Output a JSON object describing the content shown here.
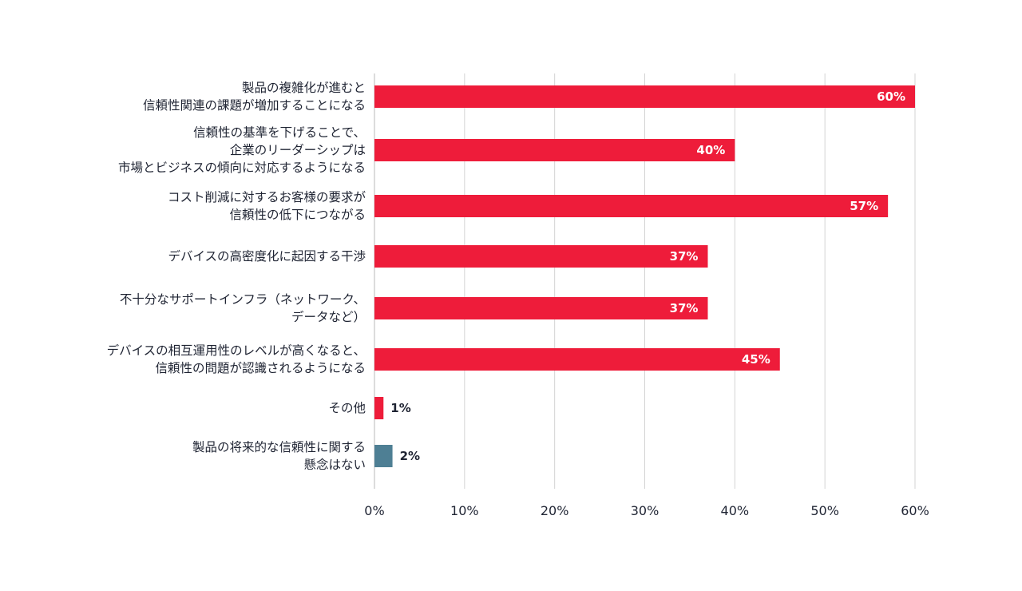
{
  "chart_data": {
    "type": "bar",
    "orientation": "horizontal",
    "categories": [
      [
        "製品の複雑化が進むと",
        "信頼性関連の課題が増加することになる"
      ],
      [
        "信頼性の基準を下げることで、",
        "企業のリーダーシップは",
        "市場とビジネスの傾向に対応するようになる"
      ],
      [
        "コスト削減に対するお客様の要求が",
        "信頼性の低下につながる"
      ],
      [
        "デバイスの高密度化に起因する干渉"
      ],
      [
        "不十分なサポートインフラ（ネットワーク、",
        "データなど）"
      ],
      [
        "デバイスの相互運用性のレベルが高くなると、",
        "信頼性の問題が認識されるようになる"
      ],
      [
        "その他"
      ],
      [
        "製品の将来的な信頼性に関する",
        "懸念はない"
      ]
    ],
    "values": [
      60,
      40,
      57,
      37,
      37,
      45,
      1,
      2
    ],
    "value_labels": [
      "60%",
      "40%",
      "57%",
      "37%",
      "37%",
      "45%",
      "1%",
      "2%"
    ],
    "bar_colors": [
      "#ee1c3a",
      "#ee1c3a",
      "#ee1c3a",
      "#ee1c3a",
      "#ee1c3a",
      "#ee1c3a",
      "#ee1c3a",
      "#4e7f94"
    ],
    "xlim": [
      0,
      60
    ],
    "x_ticks": [
      0,
      10,
      20,
      30,
      40,
      50,
      60
    ],
    "x_tick_labels": [
      "0%",
      "10%",
      "20%",
      "30%",
      "40%",
      "50%",
      "60%"
    ],
    "grid": "vertical",
    "legend": "none"
  }
}
